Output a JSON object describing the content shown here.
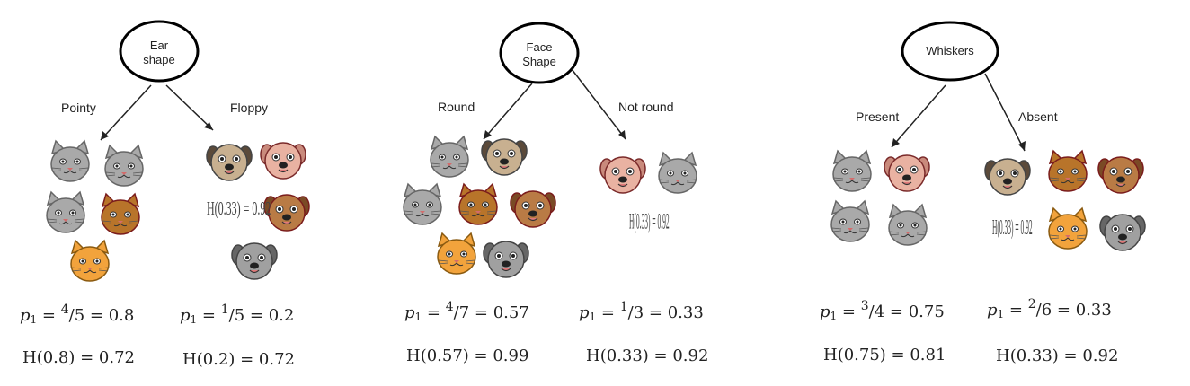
{
  "splits": [
    {
      "feature": "Ear\nshape",
      "left_branch": "Pointy",
      "right_branch": "Floppy",
      "left_p1": "= 0.8",
      "left_p1_num": "4",
      "left_p1_den": "5",
      "right_p1": "= 0.2",
      "right_p1_num": "1",
      "right_p1_den": "5",
      "left_entropy": "H(0.8) = 0.72",
      "right_entropy": "H(0.2) = 0.72",
      "handwritten_note": "H(0.33) = 0.92"
    },
    {
      "feature": "Face\nShape",
      "left_branch": "Round",
      "right_branch": "Not round",
      "left_p1": "= 0.57",
      "left_p1_num": "4",
      "left_p1_den": "7",
      "right_p1": "= 0.33",
      "right_p1_num": "1",
      "right_p1_den": "3",
      "left_entropy": "H(0.57) = 0.99",
      "right_entropy": "H(0.33) = 0.92",
      "handwritten_note": "H(0.33) = 0.92"
    },
    {
      "feature": "Whiskers",
      "left_branch": "Present",
      "right_branch": "Absent",
      "left_p1": "= 0.75",
      "left_p1_num": "3",
      "left_p1_den": "4",
      "right_p1": "= 0.33",
      "right_p1_num": "2",
      "right_p1_den": "6",
      "left_entropy": "H(0.75) = 0.81",
      "right_entropy": "H(0.33) = 0.92",
      "handwritten_note": "H(0.33) = 0.92"
    }
  ],
  "symbols": {
    "p1": "p",
    "p1_sub": "1",
    "eq": "="
  },
  "colors": {
    "gray_cat": "#a9a9a9",
    "brown_cat": "#b8742a",
    "orange_cat": "#f2a33c",
    "pug": "#c8b090",
    "pink_dog": "#e9b2a2",
    "brown_dog": "#b97b45",
    "gray_dog": "#a0a0a0"
  }
}
